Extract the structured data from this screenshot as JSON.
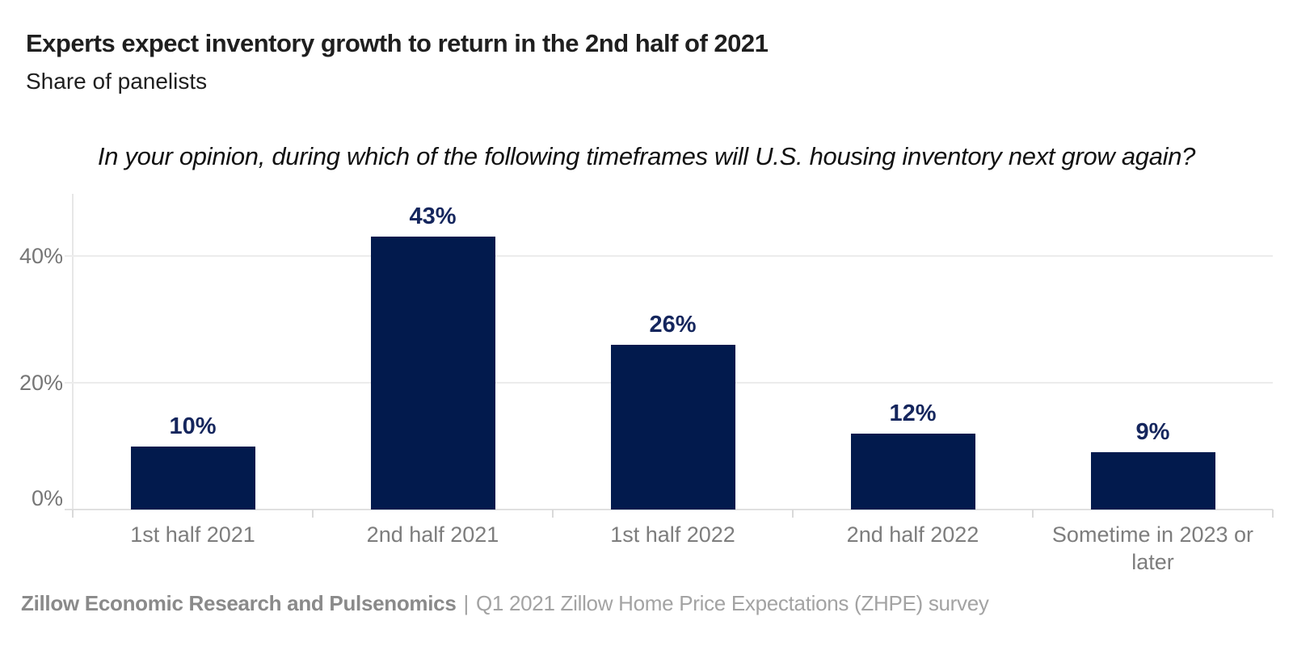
{
  "header": {
    "title": "Experts expect inventory growth to return in the 2nd half of 2021",
    "subtitle": "Share of panelists"
  },
  "question": "In your opinion, during which of the following timeframes will U.S. housing inventory next grow again?",
  "chart_data": {
    "type": "bar",
    "title": "Experts expect inventory growth to return in the 2nd half of 2021",
    "subtitle": "Share of panelists",
    "annotation": "In your opinion, during which of the following timeframes will U.S. housing inventory next grow again?",
    "categories": [
      "1st half 2021",
      "2nd half 2021",
      "1st half 2022",
      "2nd half 2022",
      "Sometime in 2023 or later"
    ],
    "values": [
      10,
      43,
      26,
      12,
      9
    ],
    "value_labels": [
      "10%",
      "43%",
      "26%",
      "12%",
      "9%"
    ],
    "unit": "percent",
    "xlabel": "",
    "ylabel": "",
    "ylim": [
      0,
      48
    ],
    "yticks": [
      {
        "value": 0,
        "label": "0%"
      },
      {
        "value": 20,
        "label": "20%"
      },
      {
        "value": 40,
        "label": "40%"
      }
    ],
    "grid": "horizontal-light",
    "legend": "none"
  },
  "footer": {
    "source_bold": "Zillow Economic Research and Pulsenomics",
    "separator": "|",
    "source_regular": "Q1 2021 Zillow Home Price Expectations (ZHPE) survey"
  },
  "colors": {
    "background": "#ffffff",
    "bar": "#021a4d",
    "value_label": "#15265d",
    "title_text": "#1f1f1f",
    "axis_text": "#767676",
    "category_text": "#7d7d7d",
    "grid_line": "#ececec",
    "axis_line": "#e0e0e0",
    "axis_line_v": "#e7e7e7",
    "tick": "#d9d9d9",
    "footer_bold": "#8a8a8a",
    "footer_regular": "#a3a3a3"
  }
}
